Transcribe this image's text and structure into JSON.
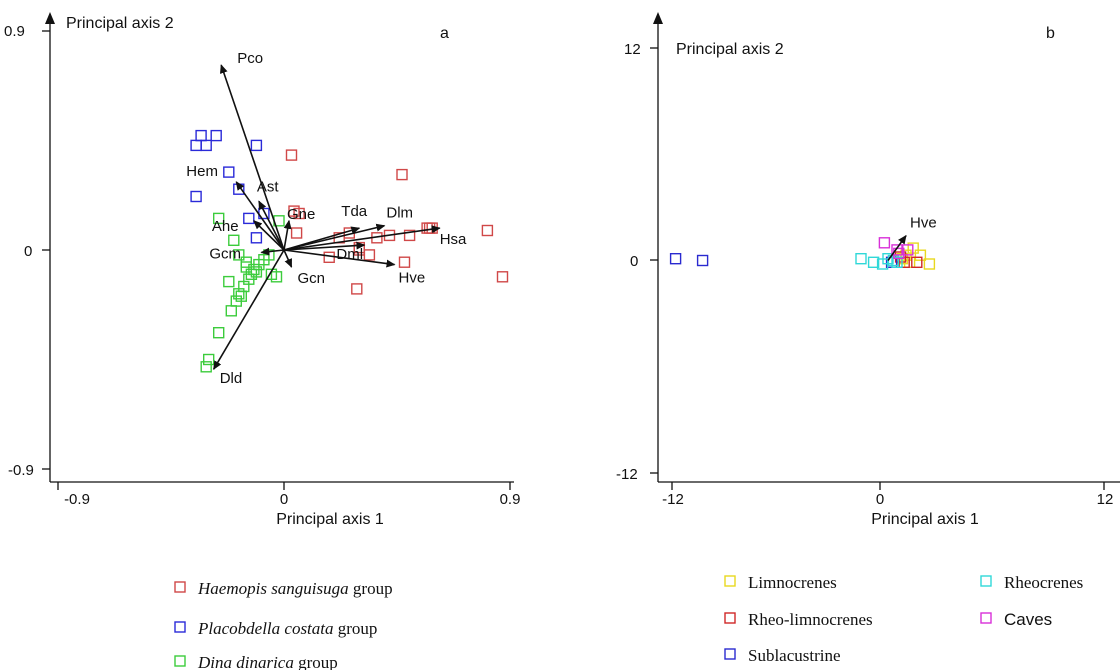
{
  "chart_data": [
    {
      "type": "scatter",
      "panel_label": "a",
      "xlabel": "Principal axis  1",
      "ylabel": "Principal axis  2",
      "xlim": [
        -0.9,
        0.9
      ],
      "ylim": [
        -0.9,
        0.9
      ],
      "xticks": [
        {
          "value": -0.9,
          "label": "-0.9"
        },
        {
          "value": 0,
          "label": "0"
        },
        {
          "value": 0.9,
          "label": "0.9"
        }
      ],
      "yticks": [
        {
          "value": -0.9,
          "label": "-0.9"
        },
        {
          "value": 0,
          "label": "0"
        },
        {
          "value": 0.9,
          "label": "0.9"
        }
      ],
      "series": [
        {
          "name": "Haemopis sanguisuga",
          "color": "#d04848",
          "points": [
            [
              0.03,
              0.39
            ],
            [
              0.47,
              0.31
            ],
            [
              0.04,
              0.16
            ],
            [
              0.06,
              0.15
            ],
            [
              0.26,
              0.07
            ],
            [
              0.37,
              0.05
            ],
            [
              0.5,
              0.06
            ],
            [
              0.57,
              0.09
            ],
            [
              0.58,
              0.09
            ],
            [
              0.59,
              0.09
            ],
            [
              0.81,
              0.08
            ],
            [
              0.87,
              -0.11
            ],
            [
              0.18,
              -0.03
            ],
            [
              0.3,
              0.0
            ],
            [
              0.34,
              -0.02
            ],
            [
              0.48,
              -0.05
            ],
            [
              0.29,
              -0.16
            ],
            [
              0.05,
              0.07
            ],
            [
              0.22,
              0.05
            ],
            [
              0.42,
              0.06
            ],
            [
              0.3,
              0.01
            ]
          ]
        },
        {
          "name": "Placobdella costata",
          "color": "#2a2ad8",
          "points": [
            [
              -0.33,
              0.47
            ],
            [
              -0.35,
              0.43
            ],
            [
              -0.31,
              0.43
            ],
            [
              -0.27,
              0.47
            ],
            [
              -0.11,
              0.43
            ],
            [
              -0.22,
              0.32
            ],
            [
              -0.18,
              0.25
            ],
            [
              -0.35,
              0.22
            ],
            [
              -0.14,
              0.13
            ],
            [
              -0.11,
              0.05
            ],
            [
              -0.08,
              0.15
            ]
          ]
        },
        {
          "name": "Dina dinarica",
          "color": "#3ccc3c",
          "points": [
            [
              -0.26,
              0.13
            ],
            [
              -0.2,
              0.04
            ],
            [
              -0.18,
              -0.02
            ],
            [
              -0.15,
              -0.05
            ],
            [
              -0.15,
              -0.07
            ],
            [
              -0.17,
              -0.19
            ],
            [
              -0.19,
              -0.21
            ],
            [
              -0.21,
              -0.25
            ],
            [
              -0.22,
              -0.13
            ],
            [
              -0.16,
              -0.15
            ],
            [
              -0.18,
              -0.18
            ],
            [
              -0.26,
              -0.34
            ],
            [
              -0.3,
              -0.45
            ],
            [
              -0.31,
              -0.48
            ],
            [
              -0.05,
              -0.1
            ],
            [
              -0.03,
              -0.11
            ],
            [
              -0.12,
              -0.08
            ],
            [
              -0.1,
              -0.06
            ],
            [
              -0.08,
              -0.04
            ],
            [
              -0.06,
              -0.02
            ],
            [
              -0.02,
              0.12
            ],
            [
              -0.14,
              -0.12
            ],
            [
              -0.13,
              -0.1
            ],
            [
              -0.11,
              -0.09
            ]
          ]
        }
      ],
      "arrow_color": "#111111",
      "vectors": [
        {
          "label": "Pco",
          "x": -0.25,
          "y": 0.76
        },
        {
          "label": "Hem",
          "x": -0.19,
          "y": 0.28
        },
        {
          "label": "Ast",
          "x": -0.1,
          "y": 0.2
        },
        {
          "label": "Gne",
          "x": 0.02,
          "y": 0.12
        },
        {
          "label": "Ahe",
          "x": -0.12,
          "y": 0.12
        },
        {
          "label": "Tda",
          "x": 0.3,
          "y": 0.09
        },
        {
          "label": "Dlm",
          "x": 0.4,
          "y": 0.1
        },
        {
          "label": "Hsa",
          "x": 0.62,
          "y": 0.09
        },
        {
          "label": "Dml",
          "x": 0.32,
          "y": 0.02
        },
        {
          "label": "Hve",
          "x": 0.44,
          "y": -0.06
        },
        {
          "label": "Gcm",
          "x": -0.09,
          "y": -0.01
        },
        {
          "label": "Gcn",
          "x": 0.03,
          "y": -0.07
        },
        {
          "label": "Dld",
          "x": -0.28,
          "y": -0.49
        }
      ]
    },
    {
      "type": "scatter",
      "panel_label": "b",
      "xlabel": "Principal axis  1",
      "ylabel": "Principal axis  2",
      "xlim": [
        -12,
        12
      ],
      "ylim": [
        -12,
        12
      ],
      "xticks": [
        {
          "value": -12,
          "label": "-12"
        },
        {
          "value": 0,
          "label": "0"
        },
        {
          "value": 12,
          "label": "12"
        }
      ],
      "yticks": [
        {
          "value": -12,
          "label": "-12"
        },
        {
          "value": 0,
          "label": "0"
        },
        {
          "value": 12,
          "label": "12"
        }
      ],
      "series": [
        {
          "name": "Limnocrenes",
          "color": "#e8d820",
          "points": [
            [
              1.4,
              0.7
            ],
            [
              1.8,
              0.3
            ],
            [
              2.3,
              -0.2
            ],
            [
              1.2,
              -0.1
            ],
            [
              0.8,
              0.1
            ],
            [
              1.0,
              0.3
            ]
          ]
        },
        {
          "name": "Rheo-limnocrenes",
          "color": "#d02828",
          "points": [
            [
              1.6,
              -0.1
            ],
            [
              0.7,
              0.2
            ],
            [
              0.9,
              -0.1
            ]
          ]
        },
        {
          "name": "Sublacustrine",
          "color": "#2a2ad0",
          "points": [
            [
              -11.8,
              0.1
            ],
            [
              -10.3,
              0.0
            ],
            [
              0.2,
              -0.1
            ]
          ]
        },
        {
          "name": "Rheocrenes",
          "color": "#30d8d8",
          "points": [
            [
              -1.5,
              0.1
            ],
            [
              -0.8,
              -0.1
            ],
            [
              -0.3,
              -0.2
            ],
            [
              0.3,
              0.0
            ],
            [
              0.5,
              -0.1
            ],
            [
              0.0,
              0.1
            ]
          ]
        },
        {
          "name": "Caves",
          "color": "#d830d8",
          "points": [
            [
              -0.2,
              1.0
            ],
            [
              0.5,
              0.6
            ],
            [
              0.6,
              0.4
            ],
            [
              1.1,
              0.6
            ]
          ]
        }
      ],
      "arrow_color": "#111111",
      "vectors": [
        {
          "label": "Hve",
          "x": 1.0,
          "y": 1.4
        }
      ]
    }
  ],
  "legend_a": [
    {
      "name": "Haemopis sanguisuga",
      "suffix": "group",
      "color": "#d04848"
    },
    {
      "name": "Placobdella costata",
      "suffix": "group",
      "color": "#2a2ad8"
    },
    {
      "name": "Dina dinarica",
      "suffix": "group",
      "color": "#3ccc3c"
    }
  ],
  "legend_b": [
    {
      "name": "Limnocrenes",
      "color": "#e8d820",
      "font": "serif"
    },
    {
      "name": "Rheocrenes",
      "color": "#30d8d8",
      "font": "serif"
    },
    {
      "name": "Rheo-limnocrenes",
      "color": "#d02828",
      "font": "serif"
    },
    {
      "name": "Caves",
      "color": "#d830d8",
      "font": "sans"
    },
    {
      "name": "Sublacustrine",
      "color": "#2a2ad0",
      "font": "serif"
    }
  ]
}
